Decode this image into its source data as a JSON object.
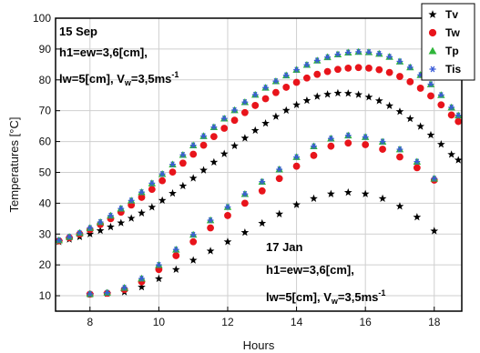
{
  "chart_data": {
    "type": "scatter",
    "xlabel": "Hours",
    "ylabel": "Temperatures [°C]",
    "xlim": [
      7,
      18.8
    ],
    "ylim": [
      5,
      100
    ],
    "xticks": [
      8,
      10,
      12,
      14,
      16,
      18
    ],
    "yticks": [
      10,
      20,
      30,
      40,
      50,
      60,
      70,
      80,
      90,
      100
    ],
    "legend_position": "top-right",
    "annotations": [
      {
        "lines": [
          "15 Sep",
          "h1=ew=3,6[cm],",
          "lw=5[cm], V_w=3,5ms^-1"
        ]
      },
      {
        "lines": [
          "17 Jan",
          "h1=ew=3,6[cm],",
          "lw=5[cm], V_w=3,5ms^-1"
        ]
      }
    ],
    "series": [
      {
        "name": "Tv",
        "marker": "star",
        "color": "#000000",
        "groups": [
          {
            "x": [
              7.1,
              7.4,
              7.7,
              8.0,
              8.3,
              8.6,
              8.9,
              9.2,
              9.5,
              9.8,
              10.1,
              10.4,
              10.7,
              11.0,
              11.3,
              11.6,
              11.9,
              12.2,
              12.5,
              12.8,
              13.1,
              13.4,
              13.7,
              14.0,
              14.3,
              14.6,
              14.9,
              15.2,
              15.5,
              15.8,
              16.1,
              16.4,
              16.7,
              17.0,
              17.3,
              17.6,
              17.9,
              18.2,
              18.5,
              18.7
            ],
            "y": [
              27.5,
              28.3,
              29.1,
              30.0,
              31.1,
              32.3,
              33.6,
              35.1,
              36.8,
              38.7,
              40.9,
              43.2,
              45.6,
              48.1,
              50.7,
              53.3,
              56.0,
              58.6,
              61.1,
              63.6,
              65.9,
              68.1,
              70.1,
              71.9,
              73.3,
              74.6,
              75.3,
              75.7,
              75.6,
              75.2,
              74.4,
              73.2,
              71.6,
              69.7,
              67.4,
              64.9,
              62.1,
              59.1,
              55.8,
              54.0
            ]
          },
          {
            "x": [
              8.0,
              8.5,
              9.0,
              9.5,
              10.0,
              10.5,
              11.0,
              11.5,
              12.0,
              12.5,
              13.0,
              13.5,
              14.0,
              14.5,
              15.0,
              15.5,
              16.0,
              16.5,
              17.0,
              17.5,
              18.0
            ],
            "y": [
              10.5,
              10.7,
              11.2,
              12.8,
              15.5,
              18.5,
              21.5,
              24.5,
              27.5,
              30.5,
              33.5,
              36.5,
              39.5,
              41.5,
              43.0,
              43.5,
              43.0,
              41.5,
              39.0,
              35.5,
              31.0
            ]
          }
        ]
      },
      {
        "name": "Tw",
        "marker": "circle",
        "color": "#e8141b",
        "groups": [
          {
            "x": [
              7.1,
              7.4,
              7.7,
              8.0,
              8.3,
              8.6,
              8.9,
              9.2,
              9.5,
              9.8,
              10.1,
              10.4,
              10.7,
              11.0,
              11.3,
              11.6,
              11.9,
              12.2,
              12.5,
              12.8,
              13.1,
              13.4,
              13.7,
              14.0,
              14.3,
              14.6,
              14.9,
              15.2,
              15.5,
              15.8,
              16.1,
              16.4,
              16.7,
              17.0,
              17.3,
              17.6,
              17.9,
              18.2,
              18.5,
              18.7
            ],
            "y": [
              27.8,
              28.8,
              30.0,
              31.4,
              33.1,
              35.0,
              37.1,
              39.4,
              41.9,
              44.5,
              47.3,
              50.1,
              53.0,
              55.9,
              58.8,
              61.6,
              64.3,
              66.9,
              69.4,
              71.7,
              73.9,
              75.9,
              77.6,
              79.2,
              80.6,
              81.8,
              82.7,
              83.4,
              83.8,
              84.0,
              83.8,
              83.3,
              82.4,
              81.1,
              79.4,
              77.3,
              74.8,
              71.9,
              68.6,
              66.5
            ]
          },
          {
            "x": [
              8.0,
              8.5,
              9.0,
              9.5,
              10.0,
              10.5,
              11.0,
              11.5,
              12.0,
              12.5,
              13.0,
              13.5,
              14.0,
              14.5,
              15.0,
              15.5,
              16.0,
              16.5,
              17.0,
              17.5,
              18.0
            ],
            "y": [
              10.5,
              10.8,
              12.0,
              14.5,
              18.5,
              23.0,
              27.5,
              32.0,
              36.0,
              40.0,
              44.0,
              48.0,
              52.0,
              55.5,
              58.5,
              59.5,
              59.0,
              57.5,
              55.0,
              51.5,
              47.5
            ]
          }
        ]
      },
      {
        "name": "Tp",
        "marker": "triangle",
        "color": "#2fb53a",
        "groups": [
          {
            "x": [
              7.1,
              7.4,
              7.7,
              8.0,
              8.3,
              8.6,
              8.9,
              9.2,
              9.5,
              9.8,
              10.1,
              10.4,
              10.7,
              11.0,
              11.3,
              11.6,
              11.9,
              12.2,
              12.5,
              12.8,
              13.1,
              13.4,
              13.7,
              14.0,
              14.3,
              14.6,
              14.9,
              15.2,
              15.5,
              15.8,
              16.1,
              16.4,
              16.7,
              17.0,
              17.3,
              17.6,
              17.9,
              18.2,
              18.5,
              18.7
            ],
            "y": [
              28.0,
              29.1,
              30.4,
              32.0,
              33.9,
              36.0,
              38.3,
              40.9,
              43.6,
              46.5,
              49.5,
              52.6,
              55.7,
              58.8,
              61.8,
              64.7,
              67.5,
              70.2,
              72.8,
              75.2,
              77.5,
              79.6,
              81.5,
              83.3,
              84.9,
              86.3,
              87.4,
              88.3,
              88.9,
              89.1,
              89.0,
              88.5,
              87.5,
              86.0,
              84.1,
              81.6,
              78.6,
              75.1,
              71.1,
              68.5
            ]
          },
          {
            "x": [
              8.0,
              8.5,
              9.0,
              9.5,
              10.0,
              10.5,
              11.0,
              11.5,
              12.0,
              12.5,
              13.0,
              13.5,
              14.0,
              14.5,
              15.0,
              15.5,
              16.0,
              16.5,
              17.0,
              17.5,
              18.0
            ],
            "y": [
              10.6,
              11.0,
              12.6,
              15.6,
              20.0,
              25.0,
              29.8,
              34.5,
              38.8,
              43.0,
              47.0,
              51.0,
              55.0,
              58.5,
              61.0,
              62.0,
              61.5,
              60.0,
              57.5,
              53.5,
              48.0
            ]
          }
        ]
      },
      {
        "name": "Tis",
        "marker": "asterisk",
        "color": "#3a5bd8",
        "groups": [
          {
            "x": [
              7.1,
              7.4,
              7.7,
              8.0,
              8.3,
              8.6,
              8.9,
              9.2,
              9.5,
              9.8,
              10.1,
              10.4,
              10.7,
              11.0,
              11.3,
              11.6,
              11.9,
              12.2,
              12.5,
              12.8,
              13.1,
              13.4,
              13.7,
              14.0,
              14.3,
              14.6,
              14.9,
              15.2,
              15.5,
              15.8,
              16.1,
              16.4,
              16.7,
              17.0,
              17.3,
              17.6,
              17.9,
              18.2,
              18.5,
              18.7
            ],
            "y": [
              28.0,
              29.1,
              30.4,
              32.0,
              33.9,
              36.0,
              38.3,
              40.9,
              43.6,
              46.5,
              49.5,
              52.6,
              55.7,
              58.8,
              61.8,
              64.7,
              67.5,
              70.2,
              72.8,
              75.2,
              77.5,
              79.6,
              81.5,
              83.3,
              84.9,
              86.3,
              87.4,
              88.3,
              88.9,
              89.1,
              89.0,
              88.5,
              87.5,
              86.0,
              84.1,
              81.6,
              78.6,
              75.1,
              71.1,
              68.5
            ]
          },
          {
            "x": [
              8.0,
              8.5,
              9.0,
              9.5,
              10.0,
              10.5,
              11.0,
              11.5,
              12.0,
              12.5,
              13.0,
              13.5,
              14.0,
              14.5,
              15.0,
              15.5,
              16.0,
              16.5,
              17.0,
              17.5,
              18.0
            ],
            "y": [
              10.6,
              11.0,
              12.6,
              15.6,
              20.0,
              25.0,
              29.8,
              34.5,
              38.8,
              43.0,
              47.0,
              51.0,
              55.0,
              58.5,
              61.0,
              62.0,
              61.5,
              60.0,
              57.5,
              53.5,
              48.0
            ]
          }
        ]
      }
    ]
  }
}
